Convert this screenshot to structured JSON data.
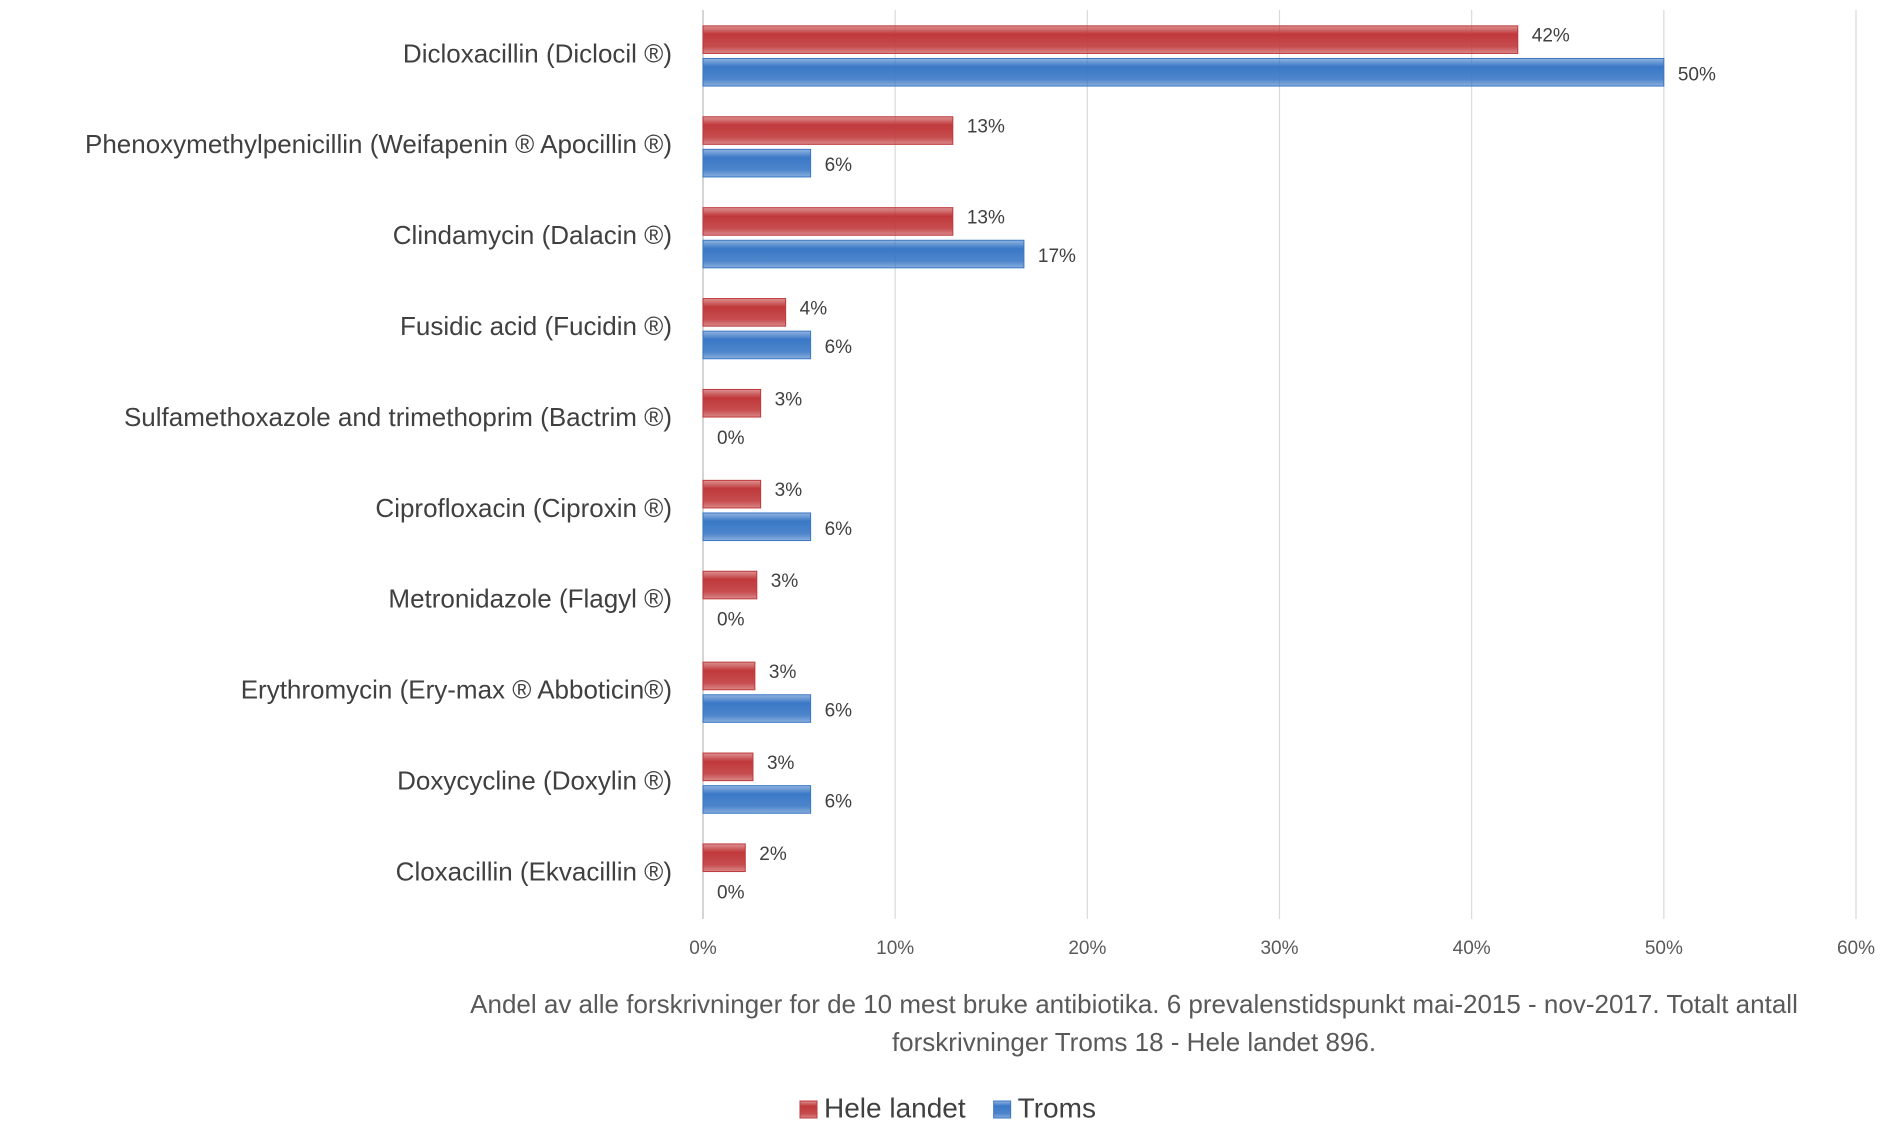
{
  "chart_data": {
    "type": "bar",
    "orientation": "horizontal",
    "categories": [
      "Dicloxacillin (Diclocil ®)",
      "Phenoxymethylpenicillin (Weifapenin ® Apocillin ®)",
      "Clindamycin (Dalacin ®)",
      "Fusidic acid (Fucidin ®)",
      "Sulfamethoxazole and trimethoprim (Bactrim ®)",
      "Ciprofloxacin (Ciproxin ®)",
      "Metronidazole (Flagyl ®)",
      "Erythromycin (Ery-max ® Abboticin®)",
      "Doxycycline (Doxylin ®)",
      "Cloxacillin (Ekvacillin ®)"
    ],
    "series": [
      {
        "name": "Hele landet",
        "color": "#c0393b",
        "values": [
          42.4,
          13.0,
          13.0,
          4.3,
          3.0,
          3.0,
          2.8,
          2.7,
          2.6,
          2.2
        ],
        "value_labels": [
          "42%",
          "13%",
          "13%",
          "4%",
          "3%",
          "3%",
          "3%",
          "3%",
          "3%",
          "2%"
        ]
      },
      {
        "name": "Troms",
        "color": "#3a78c6",
        "values": [
          50,
          5.6,
          16.7,
          5.6,
          0,
          5.6,
          0,
          5.6,
          5.6,
          0
        ],
        "value_labels": [
          "50%",
          "6%",
          "17%",
          "6%",
          "0%",
          "6%",
          "0%",
          "6%",
          "6%",
          "0%"
        ]
      }
    ],
    "xlim": [
      0,
      60
    ],
    "xticks": [
      {
        "value": 0,
        "label": "0%"
      },
      {
        "value": 10,
        "label": "10%"
      },
      {
        "value": 20,
        "label": "20%"
      },
      {
        "value": 30,
        "label": "30%"
      },
      {
        "value": 40,
        "label": "40%"
      },
      {
        "value": 50,
        "label": "50%"
      },
      {
        "value": 60,
        "label": "60%"
      }
    ],
    "grid": true,
    "caption": [
      "Andel av alle forskrivninger for de 10 mest bruke antibiotika. 6 prevalenstidspunkt mai-2015 - nov-2017. Totalt antall",
      "forskrivninger Troms 18 - Hele landet 896."
    ],
    "legend": "bottom"
  }
}
